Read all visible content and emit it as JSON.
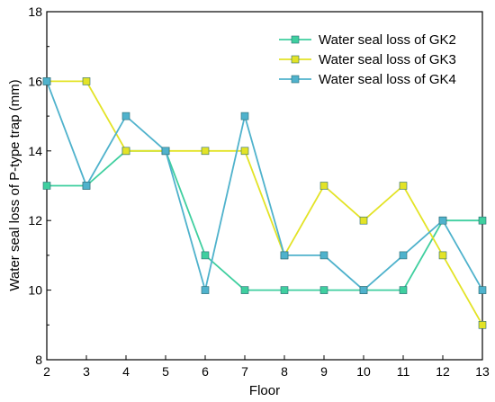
{
  "chart_data": {
    "type": "line",
    "xlabel": "Floor",
    "ylabel": "Water seal loss of P-type trap (mm)",
    "x": [
      2,
      3,
      4,
      5,
      6,
      7,
      8,
      9,
      10,
      11,
      12,
      13
    ],
    "xlim": [
      2,
      13
    ],
    "ylim": [
      8,
      18
    ],
    "yticks": [
      8,
      10,
      12,
      14,
      16,
      18
    ],
    "grid": false,
    "legend_position": "top-right",
    "series": [
      {
        "name": "Water seal loss of GK2",
        "color": "#3fcf9f",
        "marker": "square",
        "values": [
          13,
          13,
          14,
          14,
          11,
          10,
          10,
          10,
          10,
          10,
          12,
          12
        ]
      },
      {
        "name": "Water seal loss of GK3",
        "color": "#e3e326",
        "marker": "square",
        "values": [
          16,
          16,
          14,
          14,
          14,
          14,
          11,
          13,
          12,
          13,
          11,
          9
        ]
      },
      {
        "name": "Water seal loss of GK4",
        "color": "#4fb2cc",
        "marker": "square",
        "values": [
          16,
          13,
          15,
          14,
          10,
          15,
          11,
          11,
          10,
          11,
          12,
          10
        ]
      }
    ]
  }
}
